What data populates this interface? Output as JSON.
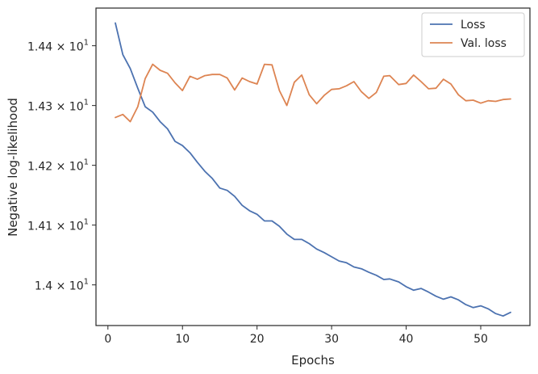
{
  "chart_data": {
    "type": "line",
    "title": "",
    "xlabel": "Epochs",
    "ylabel": "Negative log-likelihood",
    "xlim": [
      -1.6,
      56.6
    ],
    "ylim": [
      13.932,
      14.463
    ],
    "grid": false,
    "legend_position": "top-right",
    "x_ticks": [
      {
        "value": 0,
        "label": "0"
      },
      {
        "value": 10,
        "label": "10"
      },
      {
        "value": 20,
        "label": "20"
      },
      {
        "value": 30,
        "label": "30"
      },
      {
        "value": 40,
        "label": "40"
      },
      {
        "value": 50,
        "label": "50"
      }
    ],
    "y_ticks": [
      {
        "value": 14.0,
        "base": "1.4",
        "exp": "1"
      },
      {
        "value": 14.1,
        "base": "1.41",
        "exp": "1"
      },
      {
        "value": 14.2,
        "base": "1.42",
        "exp": "1"
      },
      {
        "value": 14.3,
        "base": "1.43",
        "exp": "1"
      },
      {
        "value": 14.4,
        "base": "1.44",
        "exp": "1"
      }
    ],
    "x": [
      1,
      2,
      3,
      4,
      5,
      6,
      7,
      8,
      9,
      10,
      11,
      12,
      13,
      14,
      15,
      16,
      17,
      18,
      19,
      20,
      21,
      22,
      23,
      24,
      25,
      26,
      27,
      28,
      29,
      30,
      31,
      32,
      33,
      34,
      35,
      36,
      37,
      37.8,
      39,
      40,
      41,
      42,
      43,
      44,
      45,
      46,
      47,
      48,
      49,
      50,
      51,
      52,
      53,
      54
    ],
    "series": [
      {
        "name": "Loss",
        "color": "#4c72b0",
        "values": [
          14.438,
          14.385,
          14.362,
          14.329,
          14.298,
          14.289,
          14.273,
          14.261,
          14.24,
          14.233,
          14.221,
          14.205,
          14.19,
          14.178,
          14.162,
          14.158,
          14.148,
          14.133,
          14.124,
          14.118,
          14.107,
          14.107,
          14.098,
          14.085,
          14.076,
          14.076,
          14.069,
          14.06,
          14.054,
          14.047,
          14.04,
          14.037,
          14.03,
          14.027,
          14.021,
          14.016,
          14.009,
          14.01,
          14.005,
          13.997,
          13.991,
          13.994,
          13.988,
          13.981,
          13.976,
          13.98,
          13.975,
          13.967,
          13.962,
          13.965,
          13.96,
          13.952,
          13.948,
          13.954
        ]
      },
      {
        "name": "Val. loss",
        "color": "#dd8452",
        "values": [
          14.28,
          14.285,
          14.273,
          14.298,
          14.345,
          14.369,
          14.359,
          14.354,
          14.338,
          14.325,
          14.349,
          14.344,
          14.35,
          14.352,
          14.352,
          14.346,
          14.326,
          14.346,
          14.34,
          14.336,
          14.369,
          14.368,
          14.325,
          14.3,
          14.339,
          14.351,
          14.318,
          14.303,
          14.317,
          14.327,
          14.328,
          14.333,
          14.34,
          14.323,
          14.312,
          14.322,
          14.349,
          14.35,
          14.335,
          14.337,
          14.351,
          14.34,
          14.328,
          14.329,
          14.344,
          14.336,
          14.318,
          14.308,
          14.309,
          14.304,
          14.308,
          14.307,
          14.31,
          14.311
        ]
      }
    ]
  }
}
